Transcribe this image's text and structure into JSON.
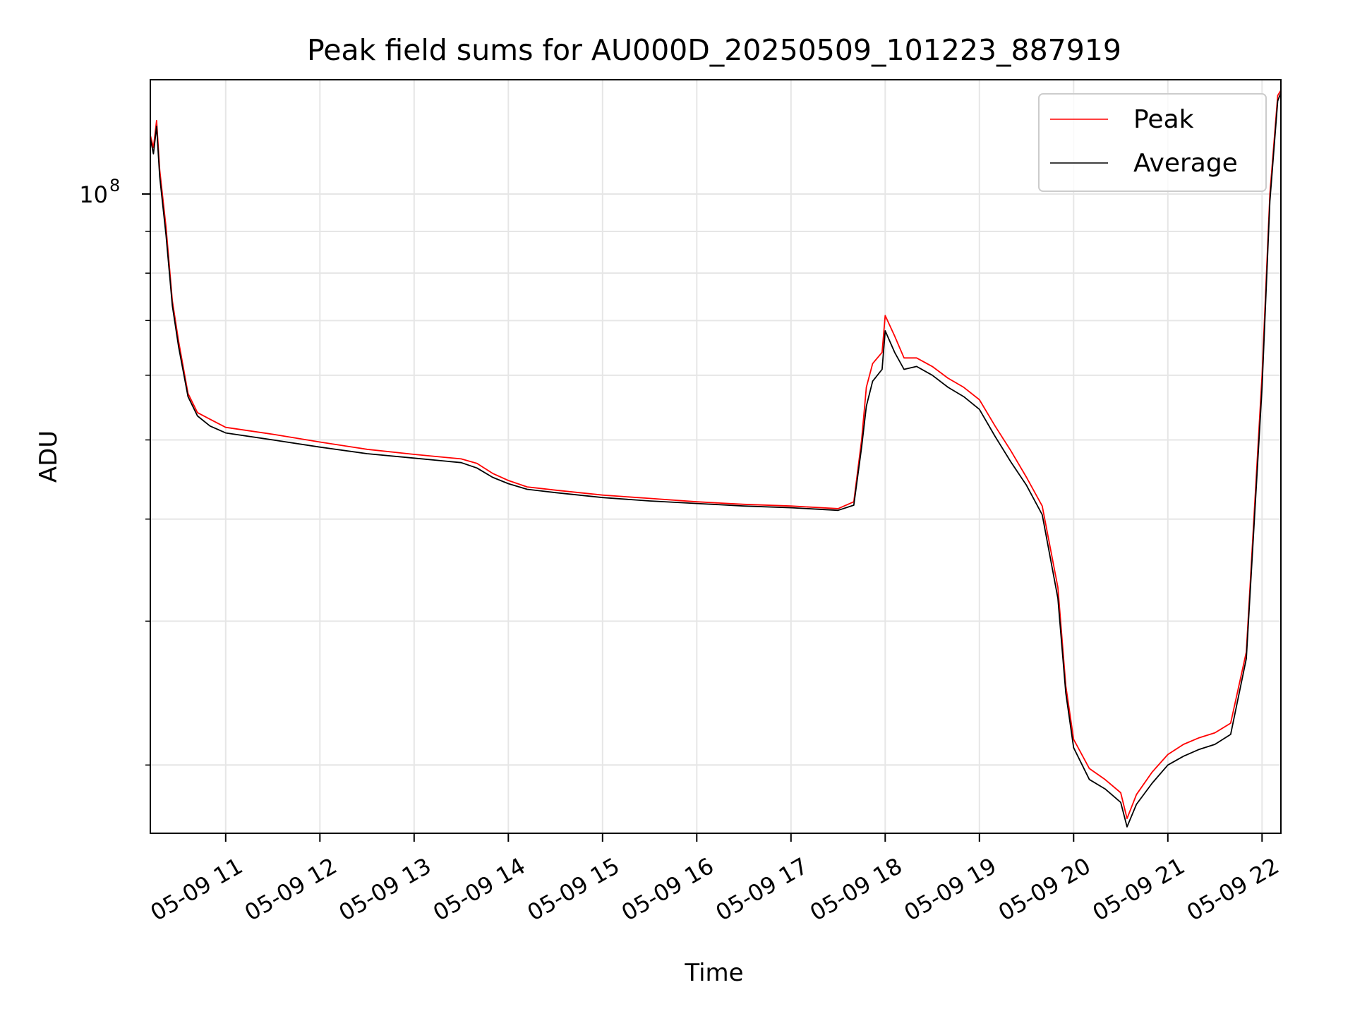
{
  "chart_data": {
    "type": "line",
    "title": "Peak field sums for AU000D_20250509_101223_887919",
    "xlabel": "Time",
    "ylabel": "ADU",
    "yscale": "log",
    "xlim": [
      "2025-05-09 10:12",
      "2025-05-09 22:12"
    ],
    "ylim": [
      16500000,
      138000000
    ],
    "grid": true,
    "legend_location": "upper right",
    "x_ticks": [
      {
        "time": "2025-05-09 11:00",
        "label": "05-09 11"
      },
      {
        "time": "2025-05-09 12:00",
        "label": "05-09 12"
      },
      {
        "time": "2025-05-09 13:00",
        "label": "05-09 13"
      },
      {
        "time": "2025-05-09 14:00",
        "label": "05-09 14"
      },
      {
        "time": "2025-05-09 15:00",
        "label": "05-09 15"
      },
      {
        "time": "2025-05-09 16:00",
        "label": "05-09 16"
      },
      {
        "time": "2025-05-09 17:00",
        "label": "05-09 17"
      },
      {
        "time": "2025-05-09 18:00",
        "label": "05-09 18"
      },
      {
        "time": "2025-05-09 19:00",
        "label": "05-09 19"
      },
      {
        "time": "2025-05-09 20:00",
        "label": "05-09 20"
      },
      {
        "time": "2025-05-09 21:00",
        "label": "05-09 21"
      },
      {
        "time": "2025-05-09 22:00",
        "label": "05-09 22"
      }
    ],
    "y_major_ticks": [
      {
        "value": 100000000,
        "base": "10",
        "exp": "8"
      }
    ],
    "y_minor_ticks": [
      20000000,
      30000000,
      40000000,
      50000000,
      60000000,
      70000000,
      80000000,
      90000000
    ],
    "series": [
      {
        "name": "Peak",
        "color": "#ff0000",
        "x": [
          "2025-05-09 10:12",
          "2025-05-09 10:14",
          "2025-05-09 10:16",
          "2025-05-09 10:18",
          "2025-05-09 10:22",
          "2025-05-09 10:26",
          "2025-05-09 10:30",
          "2025-05-09 10:36",
          "2025-05-09 10:42",
          "2025-05-09 10:50",
          "2025-05-09 11:00",
          "2025-05-09 11:30",
          "2025-05-09 12:00",
          "2025-05-09 12:30",
          "2025-05-09 13:00",
          "2025-05-09 13:30",
          "2025-05-09 13:40",
          "2025-05-09 13:50",
          "2025-05-09 14:00",
          "2025-05-09 14:12",
          "2025-05-09 14:30",
          "2025-05-09 15:00",
          "2025-05-09 15:30",
          "2025-05-09 16:00",
          "2025-05-09 16:30",
          "2025-05-09 17:00",
          "2025-05-09 17:30",
          "2025-05-09 17:40",
          "2025-05-09 17:45",
          "2025-05-09 17:48",
          "2025-05-09 17:52",
          "2025-05-09 17:58",
          "2025-05-09 18:00",
          "2025-05-09 18:06",
          "2025-05-09 18:12",
          "2025-05-09 18:20",
          "2025-05-09 18:30",
          "2025-05-09 18:40",
          "2025-05-09 18:50",
          "2025-05-09 19:00",
          "2025-05-09 19:10",
          "2025-05-09 19:20",
          "2025-05-09 19:30",
          "2025-05-09 19:40",
          "2025-05-09 19:50",
          "2025-05-09 19:55",
          "2025-05-09 20:00",
          "2025-05-09 20:10",
          "2025-05-09 20:20",
          "2025-05-09 20:30",
          "2025-05-09 20:34",
          "2025-05-09 20:40",
          "2025-05-09 20:50",
          "2025-05-09 21:00",
          "2025-05-09 21:10",
          "2025-05-09 21:20",
          "2025-05-09 21:30",
          "2025-05-09 21:40",
          "2025-05-09 21:50",
          "2025-05-09 22:00",
          "2025-05-09 22:05",
          "2025-05-09 22:10",
          "2025-05-09 22:12"
        ],
        "y": [
          118000000,
          114000000,
          123000000,
          107000000,
          91000000,
          74000000,
          66000000,
          57000000,
          54000000,
          53000000,
          51800000,
          50800000,
          49700000,
          48700000,
          48000000,
          47400000,
          46800000,
          45500000,
          44600000,
          43800000,
          43400000,
          42800000,
          42400000,
          42000000,
          41700000,
          41500000,
          41200000,
          42000000,
          50000000,
          58000000,
          62000000,
          64000000,
          71000000,
          67000000,
          63000000,
          63000000,
          61500000,
          59500000,
          58000000,
          56000000,
          52000000,
          48500000,
          45000000,
          41500000,
          33000000,
          25000000,
          21500000,
          19800000,
          19200000,
          18500000,
          17200000,
          18400000,
          19600000,
          20600000,
          21200000,
          21600000,
          21900000,
          22500000,
          27500000,
          60000000,
          100000000,
          132000000,
          134000000
        ]
      },
      {
        "name": "Average",
        "color": "#000000",
        "x": [
          "2025-05-09 10:12",
          "2025-05-09 10:14",
          "2025-05-09 10:16",
          "2025-05-09 10:18",
          "2025-05-09 10:22",
          "2025-05-09 10:26",
          "2025-05-09 10:30",
          "2025-05-09 10:36",
          "2025-05-09 10:42",
          "2025-05-09 10:50",
          "2025-05-09 11:00",
          "2025-05-09 11:30",
          "2025-05-09 12:00",
          "2025-05-09 12:30",
          "2025-05-09 13:00",
          "2025-05-09 13:30",
          "2025-05-09 13:40",
          "2025-05-09 13:50",
          "2025-05-09 14:00",
          "2025-05-09 14:12",
          "2025-05-09 14:30",
          "2025-05-09 15:00",
          "2025-05-09 15:30",
          "2025-05-09 16:00",
          "2025-05-09 16:30",
          "2025-05-09 17:00",
          "2025-05-09 17:30",
          "2025-05-09 17:40",
          "2025-05-09 17:45",
          "2025-05-09 17:48",
          "2025-05-09 17:52",
          "2025-05-09 17:58",
          "2025-05-09 18:00",
          "2025-05-09 18:06",
          "2025-05-09 18:12",
          "2025-05-09 18:20",
          "2025-05-09 18:30",
          "2025-05-09 18:40",
          "2025-05-09 18:50",
          "2025-05-09 19:00",
          "2025-05-09 19:10",
          "2025-05-09 19:20",
          "2025-05-09 19:30",
          "2025-05-09 19:40",
          "2025-05-09 19:50",
          "2025-05-09 19:55",
          "2025-05-09 20:00",
          "2025-05-09 20:10",
          "2025-05-09 20:20",
          "2025-05-09 20:30",
          "2025-05-09 20:34",
          "2025-05-09 20:40",
          "2025-05-09 20:50",
          "2025-05-09 21:00",
          "2025-05-09 21:10",
          "2025-05-09 21:20",
          "2025-05-09 21:30",
          "2025-05-09 21:40",
          "2025-05-09 21:50",
          "2025-05-09 22:00",
          "2025-05-09 22:05",
          "2025-05-09 22:10",
          "2025-05-09 22:12"
        ],
        "y": [
          117000000,
          112000000,
          121000000,
          105000000,
          89000000,
          73000000,
          65000000,
          56500000,
          53500000,
          52000000,
          51000000,
          50000000,
          49000000,
          48100000,
          47500000,
          46900000,
          46200000,
          45000000,
          44200000,
          43500000,
          43100000,
          42500000,
          42100000,
          41800000,
          41500000,
          41300000,
          41000000,
          41600000,
          49000000,
          55000000,
          59000000,
          61000000,
          68000000,
          64000000,
          61000000,
          61500000,
          60000000,
          58000000,
          56500000,
          54500000,
          50500000,
          47000000,
          44000000,
          40500000,
          32000000,
          24500000,
          21000000,
          19200000,
          18700000,
          18000000,
          16800000,
          17900000,
          19000000,
          20000000,
          20500000,
          20900000,
          21200000,
          21800000,
          27000000,
          58000000,
          98000000,
          130000000,
          133000000
        ]
      }
    ]
  }
}
